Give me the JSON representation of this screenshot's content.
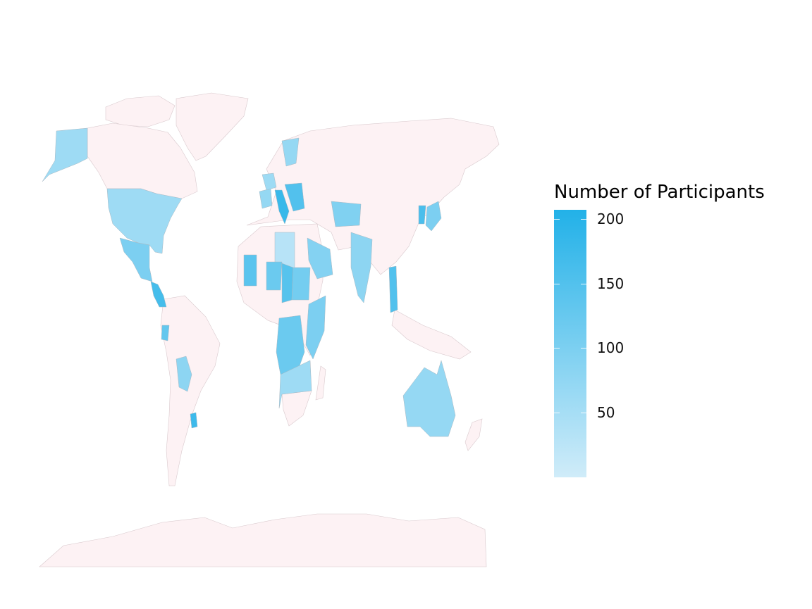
{
  "legend": {
    "title": "Number of Participants",
    "min": 0,
    "max": 207,
    "colors": {
      "high": "#22b1e8",
      "low": "#d0ecf9",
      "no_data": "#fdf2f4"
    },
    "ticks": [
      {
        "value": 200,
        "label": "200"
      },
      {
        "value": 150,
        "label": "150"
      },
      {
        "value": 100,
        "label": "100"
      },
      {
        "value": 50,
        "label": "50"
      }
    ]
  },
  "regions": [
    {
      "name": "USA",
      "value": 60
    },
    {
      "name": "Alaska",
      "value": 60
    },
    {
      "name": "Mexico",
      "value": 100
    },
    {
      "name": "Central America",
      "value": 165
    },
    {
      "name": "Ecuador",
      "value": 130
    },
    {
      "name": "Bolivia",
      "value": 80
    },
    {
      "name": "Uruguay",
      "value": 175
    },
    {
      "name": "Spain",
      "value": 70
    },
    {
      "name": "France",
      "value": 60
    },
    {
      "name": "Italy",
      "value": 180
    },
    {
      "name": "Balkans",
      "value": 150
    },
    {
      "name": "Scandinavia",
      "value": 70
    },
    {
      "name": "Algeria",
      "value": 30
    },
    {
      "name": "Mali",
      "value": 140
    },
    {
      "name": "Niger",
      "value": 120
    },
    {
      "name": "Chad",
      "value": 145
    },
    {
      "name": "Sudan",
      "value": 110
    },
    {
      "name": "Saudi Arabia",
      "value": 90
    },
    {
      "name": "Central Asia",
      "value": 95
    },
    {
      "name": "India",
      "value": 80
    },
    {
      "name": "Vietnam",
      "value": 150
    },
    {
      "name": "Korea",
      "value": 160
    },
    {
      "name": "Japan",
      "value": 100
    },
    {
      "name": "DR Congo",
      "value": 120
    },
    {
      "name": "East Africa",
      "value": 100
    },
    {
      "name": "Southern Africa",
      "value": 60
    },
    {
      "name": "Australia",
      "value": 70
    }
  ]
}
